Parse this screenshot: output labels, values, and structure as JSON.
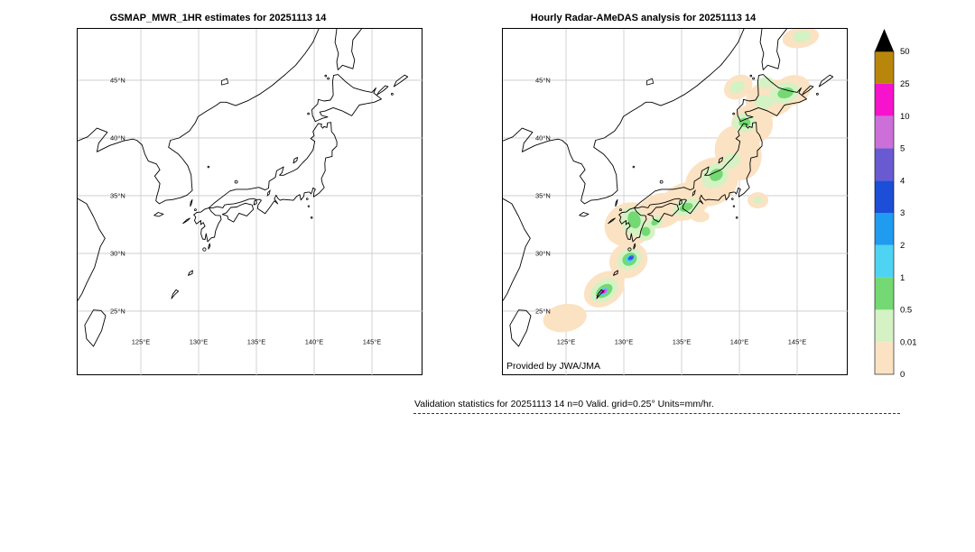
{
  "panels": [
    {
      "id": "gsmap",
      "title": "GSMAP_MWR_1HR estimates for 20251113 14"
    },
    {
      "id": "radar",
      "title": "Hourly Radar-AMeDAS analysis for 20251113 14",
      "credit": "Provided by JWA/JMA"
    }
  ],
  "map": {
    "grid_color": "#c9c9c9",
    "coast_color": "#000000",
    "lat_ticks": [
      {
        "value": 45,
        "label": "45°N"
      },
      {
        "value": 40,
        "label": "40°N"
      },
      {
        "value": 35,
        "label": "35°N"
      },
      {
        "value": 30,
        "label": "30°N"
      },
      {
        "value": 25,
        "label": "25°N"
      }
    ],
    "lon_ticks": [
      {
        "value": 125,
        "label": "125°E"
      },
      {
        "value": 130,
        "label": "130°E"
      },
      {
        "value": 135,
        "label": "135°E"
      },
      {
        "value": 140,
        "label": "140°E"
      },
      {
        "value": 145,
        "label": "145°E"
      }
    ]
  },
  "legend": {
    "tick_labels": [
      "50",
      "25",
      "10",
      "5",
      "4",
      "3",
      "2",
      "1",
      "0.5",
      "0.01",
      "0"
    ],
    "colors_top_to_bottom": [
      "#b8860b",
      "#f713ce",
      "#cd6fd8",
      "#6a5ad2",
      "#1c4ed8",
      "#1f9bf0",
      "#4ed4f2",
      "#74d973",
      "#d4f2c4",
      "#fbe2c2"
    ],
    "overflow_color": "#000000"
  },
  "caption": "Validation statistics for 20251113 14  n=0 Valid. grid=0.25° Units=mm/hr.",
  "precip_palette": {
    "t": "#fbe2c2",
    "pg": "#d4f2c4",
    "g": "#74d973",
    "c": "#4ed4f2",
    "b": "#1f9bf0",
    "db": "#1c4ed8",
    "pu": "#6a5ad2",
    "or": "#cd6fd8",
    "m": "#f713ce"
  },
  "precip_areas": [
    {
      "lv": "t",
      "lon": 130.5,
      "lat": 32.5,
      "rx": 2.2,
      "ry": 1.9,
      "rot": -20
    },
    {
      "lv": "t",
      "lon": 133.2,
      "lat": 33.7,
      "rx": 2.0,
      "ry": 1.5,
      "rot": -15
    },
    {
      "lv": "t",
      "lon": 135.3,
      "lat": 34.5,
      "rx": 2.2,
      "ry": 1.6,
      "rot": -20
    },
    {
      "lv": "t",
      "lon": 137.6,
      "lat": 36.2,
      "rx": 2.4,
      "ry": 2.0,
      "rot": -30
    },
    {
      "lv": "t",
      "lon": 139.9,
      "lat": 38.7,
      "rx": 2.0,
      "ry": 2.4,
      "rot": -15
    },
    {
      "lv": "t",
      "lon": 141.1,
      "lat": 41.2,
      "rx": 1.8,
      "ry": 1.7,
      "rot": 0
    },
    {
      "lv": "t",
      "lon": 142.7,
      "lat": 43.4,
      "rx": 2.2,
      "ry": 1.6,
      "rot": -15
    },
    {
      "lv": "t",
      "lon": 144.5,
      "lat": 44.1,
      "rx": 1.7,
      "ry": 1.3,
      "rot": -20
    },
    {
      "lv": "t",
      "lon": 139.9,
      "lat": 44.4,
      "rx": 1.3,
      "ry": 1.0,
      "rot": -30
    },
    {
      "lv": "t",
      "lon": 128.3,
      "lat": 26.9,
      "rx": 1.9,
      "ry": 1.4,
      "rot": -35
    },
    {
      "lv": "t",
      "lon": 130.4,
      "lat": 29.4,
      "rx": 1.7,
      "ry": 1.5,
      "rot": -30
    },
    {
      "lv": "t",
      "lon": 124.9,
      "lat": 24.4,
      "rx": 1.9,
      "ry": 1.2,
      "rot": -10
    },
    {
      "lv": "t",
      "lon": 141.6,
      "lat": 34.6,
      "rx": 0.9,
      "ry": 0.7,
      "rot": 0
    },
    {
      "lv": "t",
      "lon": 136.6,
      "lat": 33.2,
      "rx": 0.8,
      "ry": 0.5,
      "rot": 0
    },
    {
      "lv": "t",
      "lon": 145.3,
      "lat": 48.7,
      "rx": 1.6,
      "ry": 0.9,
      "rot": -10
    },
    {
      "lv": "pg",
      "lon": 130.8,
      "lat": 32.8,
      "rx": 1.0,
      "ry": 1.3,
      "rot": -15
    },
    {
      "lv": "pg",
      "lon": 131.9,
      "lat": 31.9,
      "rx": 0.8,
      "ry": 0.8,
      "rot": 0
    },
    {
      "lv": "pg",
      "lon": 132.7,
      "lat": 32.7,
      "rx": 0.7,
      "ry": 0.5,
      "rot": -30
    },
    {
      "lv": "pg",
      "lon": 135.4,
      "lat": 34.0,
      "rx": 1.2,
      "ry": 0.7,
      "rot": -20
    },
    {
      "lv": "pg",
      "lon": 137.9,
      "lat": 36.7,
      "rx": 1.2,
      "ry": 1.0,
      "rot": -35
    },
    {
      "lv": "pg",
      "lon": 139.3,
      "lat": 38.0,
      "rx": 0.8,
      "ry": 0.6,
      "rot": -30
    },
    {
      "lv": "pg",
      "lon": 140.4,
      "lat": 41.3,
      "rx": 1.0,
      "ry": 0.8,
      "rot": 0
    },
    {
      "lv": "pg",
      "lon": 142.1,
      "lat": 43.1,
      "rx": 0.8,
      "ry": 0.6,
      "rot": 0
    },
    {
      "lv": "pg",
      "lon": 143.9,
      "lat": 43.9,
      "rx": 1.3,
      "ry": 0.9,
      "rot": -15
    },
    {
      "lv": "pg",
      "lon": 142.3,
      "lat": 44.8,
      "rx": 0.7,
      "ry": 0.5,
      "rot": 0
    },
    {
      "lv": "pg",
      "lon": 139.8,
      "lat": 44.4,
      "rx": 0.7,
      "ry": 0.5,
      "rot": -30
    },
    {
      "lv": "pg",
      "lon": 130.5,
      "lat": 29.5,
      "rx": 1.1,
      "ry": 0.9,
      "rot": -30
    },
    {
      "lv": "pg",
      "lon": 128.3,
      "lat": 26.8,
      "rx": 1.3,
      "ry": 0.9,
      "rot": -35
    },
    {
      "lv": "pg",
      "lon": 141.6,
      "lat": 34.6,
      "rx": 0.4,
      "ry": 0.3,
      "rot": 0
    },
    {
      "lv": "pg",
      "lon": 145.4,
      "lat": 48.8,
      "rx": 0.8,
      "ry": 0.5,
      "rot": -10
    },
    {
      "lv": "g",
      "lon": 130.9,
      "lat": 32.9,
      "rx": 0.55,
      "ry": 0.75,
      "rot": -15
    },
    {
      "lv": "g",
      "lon": 135.4,
      "lat": 34.0,
      "rx": 0.6,
      "ry": 0.35,
      "rot": -20
    },
    {
      "lv": "g",
      "lon": 138.0,
      "lat": 36.8,
      "rx": 0.6,
      "ry": 0.5,
      "rot": -35
    },
    {
      "lv": "g",
      "lon": 140.45,
      "lat": 41.35,
      "rx": 0.5,
      "ry": 0.4,
      "rot": 0
    },
    {
      "lv": "g",
      "lon": 144.0,
      "lat": 43.9,
      "rx": 0.7,
      "ry": 0.45,
      "rot": -15
    },
    {
      "lv": "g",
      "lon": 131.9,
      "lat": 31.9,
      "rx": 0.4,
      "ry": 0.4,
      "rot": 0
    },
    {
      "lv": "g",
      "lon": 132.7,
      "lat": 32.7,
      "rx": 0.35,
      "ry": 0.25,
      "rot": -30
    },
    {
      "lv": "g",
      "lon": 130.5,
      "lat": 29.5,
      "rx": 0.65,
      "ry": 0.55,
      "rot": -30
    },
    {
      "lv": "g",
      "lon": 128.3,
      "lat": 26.75,
      "rx": 0.8,
      "ry": 0.5,
      "rot": -35
    },
    {
      "lv": "c",
      "lon": 130.55,
      "lat": 29.55,
      "rx": 0.42,
      "ry": 0.3,
      "rot": -35
    },
    {
      "lv": "c",
      "lon": 128.25,
      "lat": 26.7,
      "rx": 0.45,
      "ry": 0.28,
      "rot": -35
    },
    {
      "lv": "b",
      "lon": 130.6,
      "lat": 29.6,
      "rx": 0.3,
      "ry": 0.2,
      "rot": -35
    },
    {
      "lv": "db",
      "lon": 130.62,
      "lat": 29.62,
      "rx": 0.24,
      "ry": 0.13,
      "rot": -35
    },
    {
      "lv": "pu",
      "lon": 130.72,
      "lat": 29.75,
      "rx": 0.12,
      "ry": 0.07,
      "rot": -35
    },
    {
      "lv": "pu",
      "lon": 128.05,
      "lat": 26.6,
      "rx": 0.12,
      "ry": 0.07,
      "rot": 0
    },
    {
      "lv": "or",
      "lon": 128.3,
      "lat": 26.72,
      "rx": 0.3,
      "ry": 0.18,
      "rot": -30
    },
    {
      "lv": "m",
      "lon": 128.2,
      "lat": 26.68,
      "rx": 0.22,
      "ry": 0.13,
      "rot": -30
    },
    {
      "lv": "m",
      "lon": 130.55,
      "lat": 29.5,
      "rx": 0.1,
      "ry": 0.06,
      "rot": 0
    },
    {
      "lv": "m",
      "lon": 127.7,
      "lat": 26.35,
      "rx": 0.1,
      "ry": 0.06,
      "rot": 0
    }
  ]
}
